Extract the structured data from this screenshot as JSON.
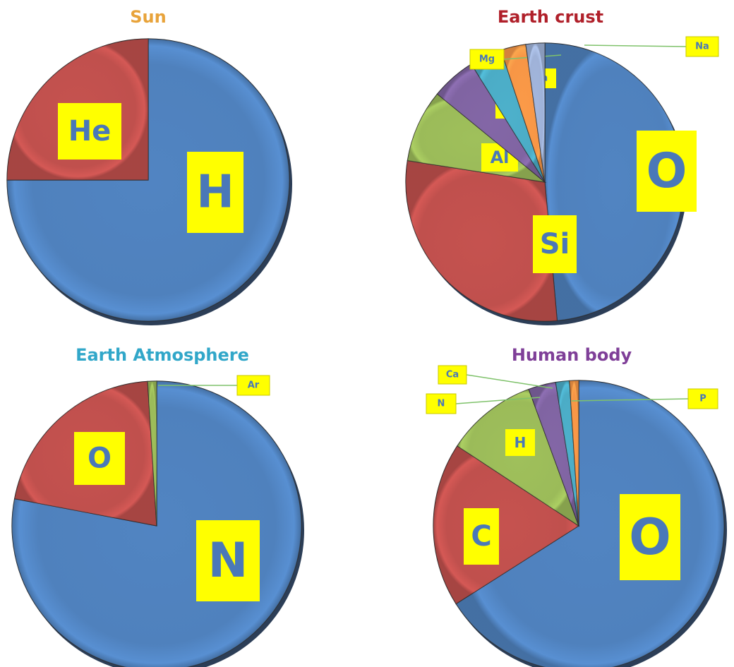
{
  "chart_data": [
    {
      "type": "pie",
      "title": "Sun",
      "title_color": "#e8a33a",
      "slices": [
        {
          "label": "H",
          "value": 75,
          "color": "#4f81bd"
        },
        {
          "label": "He",
          "value": 25,
          "color": "#c0504d"
        }
      ]
    },
    {
      "type": "pie",
      "title": "Earth crust",
      "title_color": "#b0202a",
      "slices": [
        {
          "label": "O",
          "value": 46.6,
          "color": "#4f81bd"
        },
        {
          "label": "Si",
          "value": 27.7,
          "color": "#c0504d"
        },
        {
          "label": "Al",
          "value": 8.1,
          "color": "#9bbb59"
        },
        {
          "label": "Fe",
          "value": 5.0,
          "color": "#8064a2"
        },
        {
          "label": "Ca",
          "value": 3.6,
          "color": "#4bacc6"
        },
        {
          "label": "Mg",
          "value": 2.8,
          "color": "#f79646"
        },
        {
          "label": "Na",
          "value": 2.1,
          "color": "#9fb2d8"
        }
      ]
    },
    {
      "type": "pie",
      "title": "Earth Atmosphere",
      "title_color": "#31a7c9",
      "slices": [
        {
          "label": "N",
          "value": 78,
          "color": "#4f81bd"
        },
        {
          "label": "O",
          "value": 21,
          "color": "#c0504d"
        },
        {
          "label": "Ar",
          "value": 1,
          "color": "#9bbb59"
        }
      ]
    },
    {
      "type": "pie",
      "title": "Human body",
      "title_color": "#7f3f98",
      "slices": [
        {
          "label": "O",
          "value": 65,
          "color": "#4f81bd"
        },
        {
          "label": "C",
          "value": 18,
          "color": "#c0504d"
        },
        {
          "label": "H",
          "value": 10,
          "color": "#9bbb59"
        },
        {
          "label": "N",
          "value": 3,
          "color": "#8064a2"
        },
        {
          "label": "Ca",
          "value": 1.5,
          "color": "#4bacc6"
        },
        {
          "label": "P",
          "value": 1,
          "color": "#f79646"
        }
      ]
    }
  ]
}
